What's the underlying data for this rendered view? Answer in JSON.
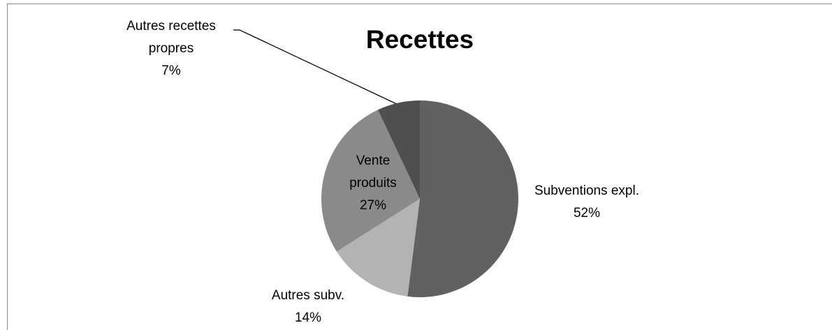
{
  "chart_data": {
    "type": "pie",
    "title": "Recettes",
    "categories": [
      "Subventions expl.",
      "Autres subv.",
      "Vente produits",
      "Autres recettes propres"
    ],
    "values": [
      52,
      14,
      27,
      7
    ],
    "value_labels": [
      "52%",
      "14%",
      "27%",
      "7%"
    ],
    "colors": [
      "#616161",
      "#b3b3b3",
      "#8a8a8a",
      "#4f4f4f"
    ]
  }
}
